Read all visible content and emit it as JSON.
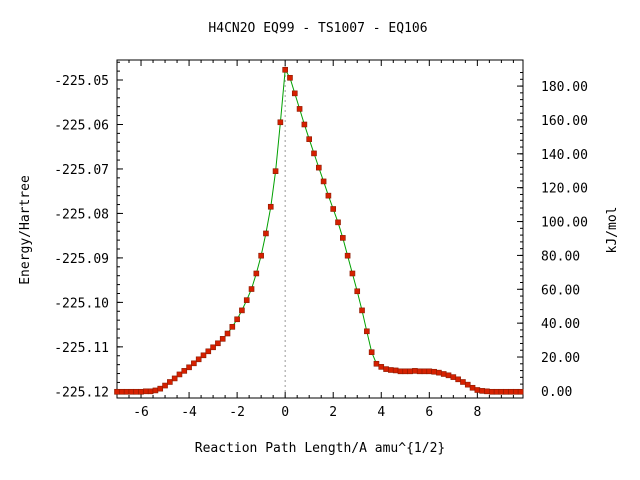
{
  "chart_data": {
    "type": "line",
    "title": "H4CN2O   EQ99 - TS1007 - EQ106",
    "xlabel": "Reaction Path Length/A amu^{1/2}",
    "ylabel": "Energy/Hartree",
    "y2label": "kJ/mol",
    "xlim": [
      -7.0,
      9.9
    ],
    "ylim": [
      -225.1215,
      -225.0455
    ],
    "y2lim": [
      -4.2,
      195.4
    ],
    "x_ticks": [
      -6,
      -4,
      -2,
      0,
      2,
      4,
      6,
      8
    ],
    "y_ticks": [
      -225.12,
      -225.11,
      -225.1,
      -225.09,
      -225.08,
      -225.07,
      -225.06,
      -225.05
    ],
    "y_tick_labels": [
      "-225.12",
      "-225.11",
      "-225.10",
      "-225.09",
      "-225.08",
      "-225.07",
      "-225.06",
      "-225.05"
    ],
    "y2_ticks": [
      0,
      20,
      40,
      60,
      80,
      100,
      120,
      140,
      160,
      180
    ],
    "y2_tick_labels": [
      "0.00",
      "20.00",
      "40.00",
      "60.00",
      "80.00",
      "100.00",
      "120.00",
      "140.00",
      "160.00",
      "180.00"
    ],
    "ts_marker_x": 0.0,
    "grid": false,
    "colors": {
      "line": "#00a000",
      "points": "#d62000",
      "point_edge": "#8b1a00",
      "ts_line": "#999999"
    },
    "series": [
      {
        "values": [
          [
            -7.0,
            -225.1201
          ],
          [
            -6.8,
            -225.1201
          ],
          [
            -6.6,
            -225.1201
          ],
          [
            -6.4,
            -225.1201
          ],
          [
            -6.2,
            -225.1201
          ],
          [
            -6.0,
            -225.1201
          ],
          [
            -5.8,
            -225.12
          ],
          [
            -5.6,
            -225.12
          ],
          [
            -5.4,
            -225.1198
          ],
          [
            -5.2,
            -225.1194
          ],
          [
            -5.0,
            -225.1187
          ],
          [
            -4.8,
            -225.1179
          ],
          [
            -4.6,
            -225.1171
          ],
          [
            -4.4,
            -225.1162
          ],
          [
            -4.2,
            -225.1154
          ],
          [
            -4.0,
            -225.1146
          ],
          [
            -3.8,
            -225.1137
          ],
          [
            -3.6,
            -225.1128
          ],
          [
            -3.4,
            -225.1119
          ],
          [
            -3.2,
            -225.111
          ],
          [
            -3.0,
            -225.1101
          ],
          [
            -2.8,
            -225.1092
          ],
          [
            -2.6,
            -225.1082
          ],
          [
            -2.4,
            -225.107
          ],
          [
            -2.2,
            -225.1055
          ],
          [
            -2.0,
            -225.1038
          ],
          [
            -1.8,
            -225.1018
          ],
          [
            -1.6,
            -225.0995
          ],
          [
            -1.4,
            -225.097
          ],
          [
            -1.2,
            -225.0935
          ],
          [
            -1.0,
            -225.0895
          ],
          [
            -0.8,
            -225.0845
          ],
          [
            -0.6,
            -225.0785
          ],
          [
            -0.4,
            -225.0705
          ],
          [
            -0.2,
            -225.0595
          ],
          [
            0.0,
            -225.0477
          ],
          [
            0.2,
            -225.0495
          ],
          [
            0.4,
            -225.053
          ],
          [
            0.6,
            -225.0565
          ],
          [
            0.8,
            -225.06
          ],
          [
            1.0,
            -225.0633
          ],
          [
            1.2,
            -225.0665
          ],
          [
            1.4,
            -225.0697
          ],
          [
            1.6,
            -225.0728
          ],
          [
            1.8,
            -225.076
          ],
          [
            2.0,
            -225.079
          ],
          [
            2.2,
            -225.082
          ],
          [
            2.4,
            -225.0855
          ],
          [
            2.6,
            -225.0895
          ],
          [
            2.8,
            -225.0935
          ],
          [
            3.0,
            -225.0975
          ],
          [
            3.2,
            -225.1018
          ],
          [
            3.4,
            -225.1065
          ],
          [
            3.6,
            -225.1112
          ],
          [
            3.8,
            -225.1138
          ],
          [
            4.0,
            -225.1145
          ],
          [
            4.2,
            -225.115
          ],
          [
            4.4,
            -225.1152
          ],
          [
            4.6,
            -225.1153
          ],
          [
            4.8,
            -225.1155
          ],
          [
            5.0,
            -225.1155
          ],
          [
            5.2,
            -225.1155
          ],
          [
            5.4,
            -225.1154
          ],
          [
            5.6,
            -225.1155
          ],
          [
            5.8,
            -225.1155
          ],
          [
            6.0,
            -225.1155
          ],
          [
            6.2,
            -225.1156
          ],
          [
            6.4,
            -225.1158
          ],
          [
            6.6,
            -225.1161
          ],
          [
            6.8,
            -225.1164
          ],
          [
            7.0,
            -225.1168
          ],
          [
            7.2,
            -225.1173
          ],
          [
            7.4,
            -225.1179
          ],
          [
            7.6,
            -225.1185
          ],
          [
            7.8,
            -225.1192
          ],
          [
            8.0,
            -225.1197
          ],
          [
            8.2,
            -225.1199
          ],
          [
            8.4,
            -225.12
          ],
          [
            8.6,
            -225.1201
          ],
          [
            8.8,
            -225.1201
          ],
          [
            9.0,
            -225.1201
          ],
          [
            9.2,
            -225.1201
          ],
          [
            9.4,
            -225.1201
          ],
          [
            9.6,
            -225.1201
          ],
          [
            9.8,
            -225.1201
          ]
        ]
      }
    ]
  }
}
